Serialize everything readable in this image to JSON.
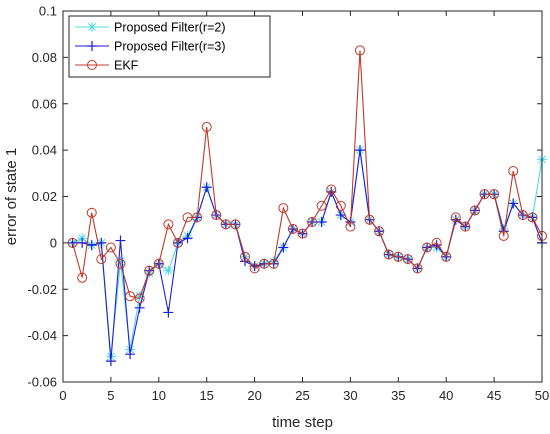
{
  "chart_data": {
    "type": "line",
    "title": "",
    "xlabel": "time step",
    "ylabel": "error of state 1",
    "xlim": [
      0,
      50
    ],
    "ylim": [
      -0.06,
      0.1
    ],
    "xticks": [
      0,
      5,
      10,
      15,
      20,
      25,
      30,
      35,
      40,
      45,
      50
    ],
    "xtick_labels": [
      "0",
      "5",
      "10",
      "15",
      "20",
      "25",
      "30",
      "35",
      "40",
      "45",
      "50"
    ],
    "yticks": [
      -0.06,
      -0.04,
      -0.02,
      0,
      0.02,
      0.04,
      0.06,
      0.08,
      0.1
    ],
    "ytick_labels": [
      "-0.06",
      "-0.04",
      "-0.02",
      "0",
      "0.02",
      "0.04",
      "0.06",
      "0.08",
      "0.1"
    ],
    "grid": false,
    "legend_position": "top-left",
    "x": [
      1,
      2,
      3,
      4,
      5,
      6,
      7,
      8,
      9,
      10,
      11,
      12,
      13,
      14,
      15,
      16,
      17,
      18,
      19,
      20,
      21,
      22,
      23,
      24,
      25,
      26,
      27,
      28,
      29,
      30,
      31,
      32,
      33,
      34,
      35,
      36,
      37,
      38,
      39,
      40,
      41,
      42,
      43,
      44,
      45,
      46,
      47,
      48,
      49,
      50
    ],
    "series": [
      {
        "name": "Proposed Filter(r=2)",
        "color": "#4dd9e6",
        "marker": "asterisk",
        "values": [
          0,
          0.002,
          -0.001,
          0.0,
          -0.049,
          -0.008,
          -0.046,
          -0.023,
          -0.013,
          -0.009,
          -0.012,
          0.0,
          0.003,
          0.011,
          0.024,
          0.012,
          0.008,
          0.008,
          -0.006,
          -0.01,
          -0.009,
          -0.008,
          -0.002,
          0.006,
          0.004,
          0.009,
          0.009,
          0.022,
          0.012,
          0.009,
          0.04,
          0.01,
          0.005,
          -0.005,
          -0.006,
          -0.007,
          -0.011,
          -0.002,
          -0.002,
          -0.006,
          0.01,
          0.007,
          0.014,
          0.021,
          0.021,
          0.006,
          0.017,
          0.012,
          0.011,
          0.036
        ]
      },
      {
        "name": "Proposed Filter(r=3)",
        "color": "#1f1fd6",
        "marker": "plus",
        "values": [
          0,
          0.0,
          -0.001,
          0.0,
          -0.051,
          0.001,
          -0.048,
          -0.028,
          -0.012,
          -0.009,
          -0.03,
          0.0,
          0.002,
          0.011,
          0.024,
          0.012,
          0.008,
          0.008,
          -0.008,
          -0.01,
          -0.009,
          -0.009,
          -0.002,
          0.006,
          0.004,
          0.009,
          0.009,
          0.022,
          0.012,
          0.009,
          0.04,
          0.01,
          0.005,
          -0.005,
          -0.006,
          -0.007,
          -0.011,
          -0.002,
          -0.001,
          -0.006,
          0.01,
          0.007,
          0.014,
          0.021,
          0.021,
          0.005,
          0.017,
          0.012,
          0.011,
          0.0
        ]
      },
      {
        "name": "EKF",
        "color": "#c0392b",
        "marker": "circle",
        "values": [
          0,
          -0.015,
          0.013,
          -0.007,
          -0.002,
          -0.009,
          -0.023,
          -0.024,
          -0.012,
          -0.009,
          0.008,
          0.0,
          0.011,
          0.011,
          0.05,
          0.012,
          0.008,
          0.008,
          -0.006,
          -0.011,
          -0.009,
          -0.009,
          0.015,
          0.006,
          0.004,
          0.009,
          0.016,
          0.023,
          0.016,
          0.007,
          0.083,
          0.01,
          0.005,
          -0.005,
          -0.006,
          -0.007,
          -0.011,
          -0.002,
          0.0,
          -0.006,
          0.011,
          0.007,
          0.014,
          0.021,
          0.021,
          0.003,
          0.031,
          0.012,
          0.011,
          0.003
        ]
      }
    ]
  }
}
